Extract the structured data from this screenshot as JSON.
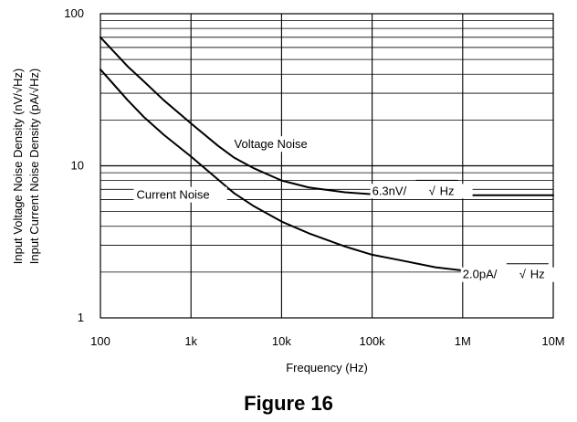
{
  "chart_data": {
    "type": "line",
    "title": "",
    "caption": "Figure 16",
    "xlabel": "Frequency (Hz)",
    "ylabel_lines": [
      "Input Voltage Noise Density (nV/√Hz)",
      "Input Current Noise Density (pA/√Hz)"
    ],
    "x_scale": "log",
    "y_scale": "log",
    "xlim": [
      100,
      10000000
    ],
    "ylim": [
      1,
      100
    ],
    "x_ticks": [
      {
        "value": 100,
        "label": "100"
      },
      {
        "value": 1000,
        "label": "1k"
      },
      {
        "value": 10000,
        "label": "10k"
      },
      {
        "value": 100000,
        "label": "100k"
      },
      {
        "value": 1000000,
        "label": "1M"
      },
      {
        "value": 10000000,
        "label": "10M"
      }
    ],
    "y_ticks": [
      {
        "value": 1,
        "label": "1"
      },
      {
        "value": 10,
        "label": "10"
      },
      {
        "value": 100,
        "label": "100"
      }
    ],
    "grid": true,
    "series": [
      {
        "name": "Voltage Noise",
        "color": "#000000",
        "x": [
          100,
          200,
          300,
          500,
          1000,
          2000,
          3000,
          5000,
          10000,
          20000,
          50000,
          100000,
          1000000,
          10000000
        ],
        "y": [
          70,
          45,
          36,
          27,
          19,
          13.5,
          11.3,
          9.6,
          8.0,
          7.2,
          6.7,
          6.5,
          6.4,
          6.4
        ]
      },
      {
        "name": "Current Noise",
        "color": "#000000",
        "x": [
          100,
          200,
          300,
          500,
          1000,
          2000,
          3000,
          5000,
          10000,
          20000,
          50000,
          100000,
          200000,
          500000,
          1000000,
          10000000
        ],
        "y": [
          43,
          27,
          21,
          16,
          11.5,
          8.1,
          6.6,
          5.4,
          4.3,
          3.6,
          2.95,
          2.6,
          2.4,
          2.15,
          2.05,
          2.0
        ]
      }
    ],
    "annotations": [
      {
        "id": "voltage",
        "text": "Voltage Noise",
        "x": 3000,
        "y": 14
      },
      {
        "id": "current",
        "text": "Current Noise",
        "x": 250,
        "y": 6.5
      },
      {
        "id": "vnd",
        "text": "6.3nV/",
        "x": 100000,
        "y": 6.9,
        "sqrt": "√",
        "unit": "Hz"
      },
      {
        "id": "cnd",
        "text": "2.0pA/",
        "x": 1000000,
        "y": 1.95,
        "sqrt": "√",
        "unit": "Hz"
      }
    ]
  }
}
